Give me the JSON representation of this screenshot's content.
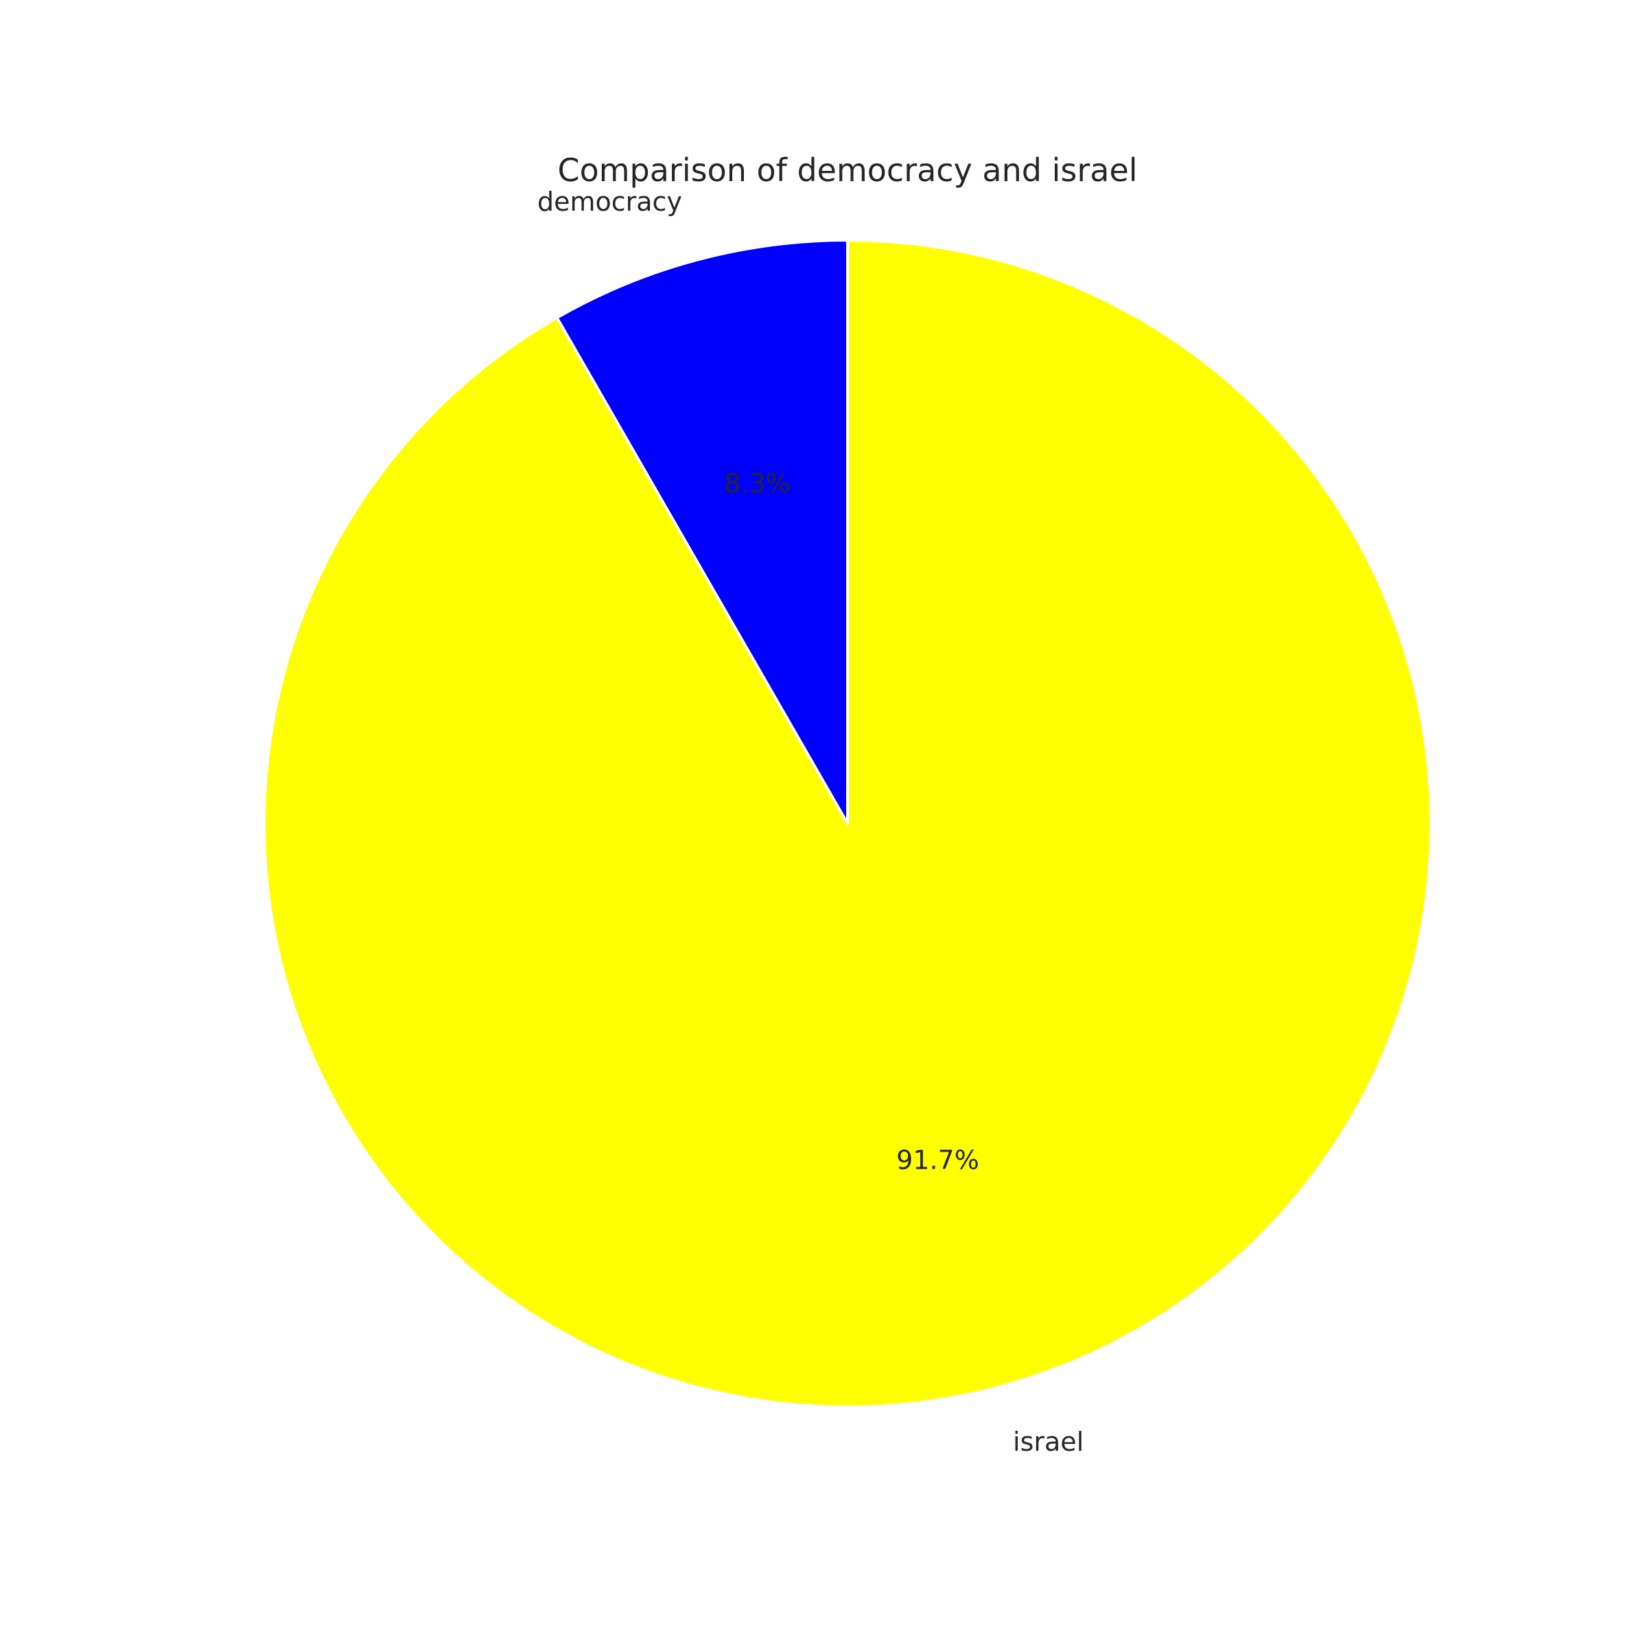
{
  "chart_data": {
    "type": "pie",
    "title": "Comparison of democracy and israel",
    "start_angle_deg": 90,
    "direction": "counterclockwise",
    "wedge_edge_color": "#ffffff",
    "slices": [
      {
        "label": "democracy",
        "value": 8.3,
        "pct_label": "8.3%",
        "color": "#0000ff"
      },
      {
        "label": "israel",
        "value": 91.7,
        "pct_label": "91.7%",
        "color": "#ffff00"
      }
    ]
  }
}
